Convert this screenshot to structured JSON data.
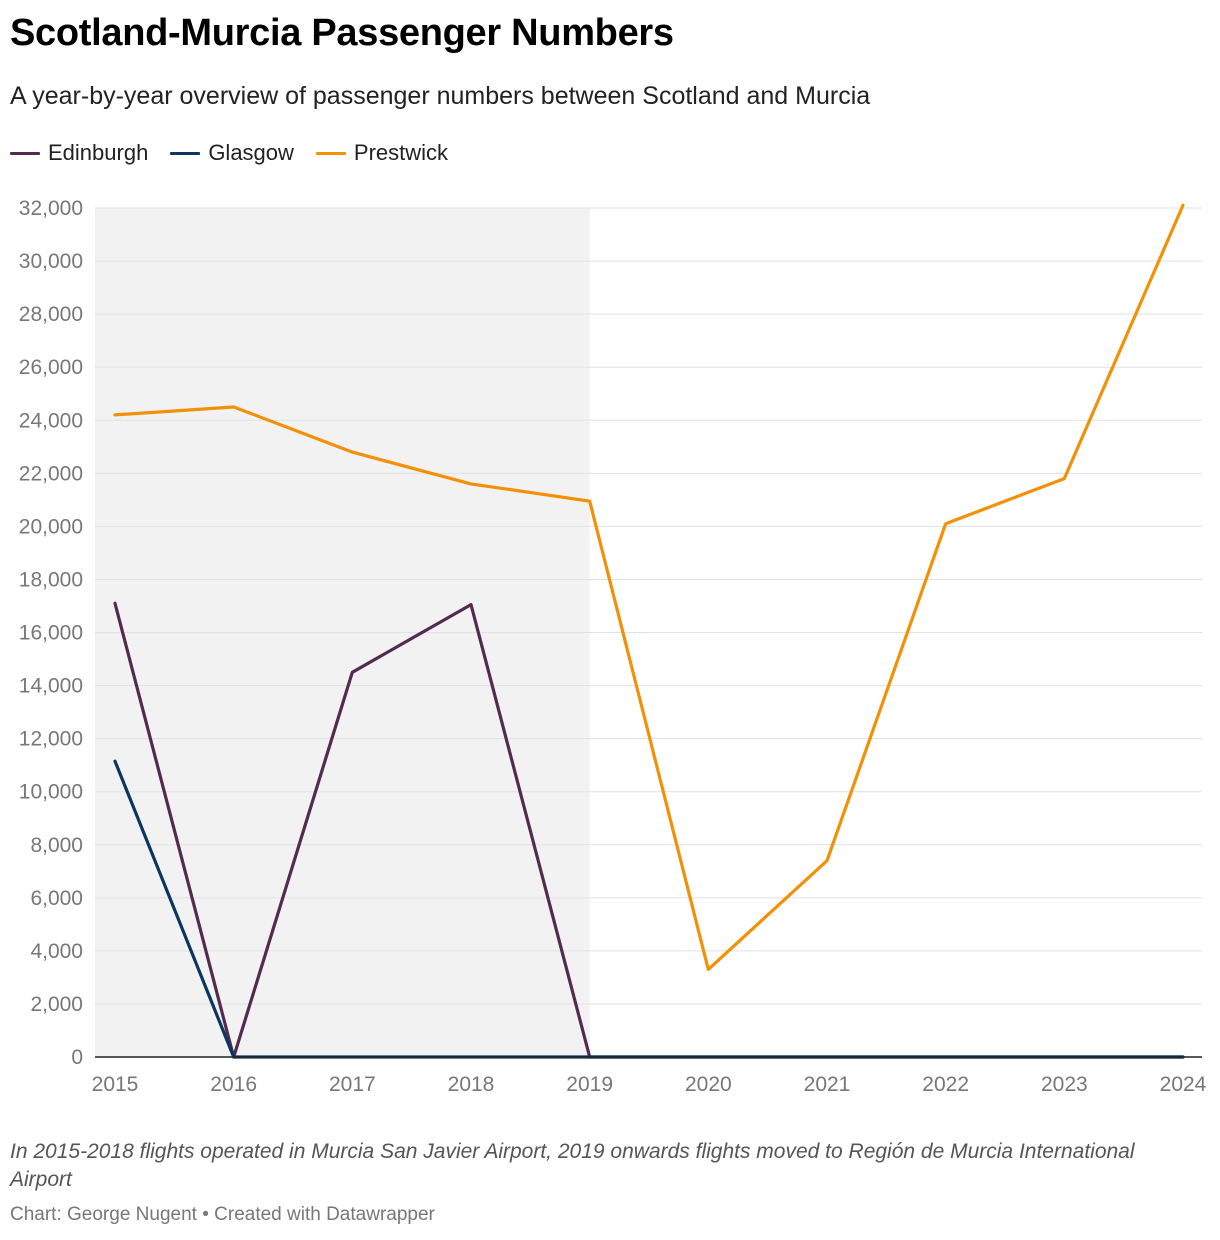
{
  "header": {
    "title": "Scotland-Murcia Passenger Numbers",
    "subtitle": "A year-by-year overview of passenger numbers between Scotland and Murcia"
  },
  "legend": [
    {
      "name": "Edinburgh",
      "color": "#522c4f"
    },
    {
      "name": "Glasgow",
      "color": "#0b3660"
    },
    {
      "name": "Prestwick",
      "color": "#f29008"
    }
  ],
  "chart_data": {
    "type": "line",
    "title": "Scotland-Murcia Passenger Numbers",
    "xlabel": "",
    "ylabel": "",
    "x": [
      "2015",
      "2016",
      "2017",
      "2018",
      "2019",
      "2020",
      "2021",
      "2022",
      "2023",
      "2024"
    ],
    "ylim": [
      0,
      32000
    ],
    "yticks": [
      "0",
      "2,000",
      "4,000",
      "6,000",
      "8,000",
      "10,000",
      "12,000",
      "14,000",
      "16,000",
      "18,000",
      "20,000",
      "22,000",
      "24,000",
      "26,000",
      "28,000",
      "30,000",
      "32,000"
    ],
    "grid": true,
    "highlight_range": {
      "from": "2015",
      "to": "2019"
    },
    "series": [
      {
        "name": "Edinburgh",
        "color": "#522c4f",
        "values": [
          17100,
          0,
          14500,
          17050,
          0,
          0,
          0,
          0,
          0,
          0
        ]
      },
      {
        "name": "Glasgow",
        "color": "#0b3660",
        "values": [
          11150,
          0,
          0,
          0,
          0,
          0,
          0,
          0,
          0,
          0
        ]
      },
      {
        "name": "Prestwick",
        "color": "#f29008",
        "values": [
          24200,
          24500,
          22800,
          21600,
          20950,
          3300,
          7400,
          20100,
          21800,
          32100
        ]
      }
    ]
  },
  "footer": {
    "notes": "In 2015-2018 flights operated in Murcia San Javier Airport, 2019 onwards flights moved to Región de Murcia International Airport",
    "credit": "Chart: George Nugent • Created with Datawrapper"
  }
}
